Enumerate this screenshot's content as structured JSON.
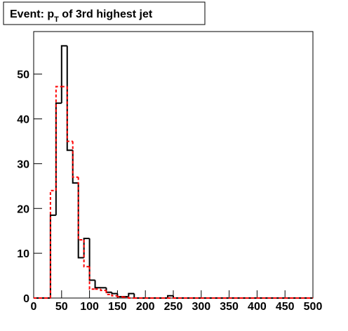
{
  "chart_data": {
    "type": "histogram",
    "title": [
      "Event: p",
      "T",
      " of 3rd highest jet"
    ],
    "bins": [
      0,
      10,
      20,
      30,
      40,
      50,
      60,
      70,
      80,
      90,
      100,
      110,
      120,
      130,
      140,
      150,
      160,
      170,
      180,
      190,
      200,
      210,
      220,
      230,
      240,
      250,
      260,
      270,
      280,
      290,
      300,
      310,
      320,
      330,
      340,
      350,
      360,
      370,
      380,
      390,
      400,
      410,
      420,
      430,
      440,
      450,
      460,
      470,
      480,
      490,
      500
    ],
    "series": [
      {
        "color": "#000000",
        "dash": false,
        "values": [
          0,
          0,
          0,
          18.5,
          43.5,
          56.3,
          33,
          25.7,
          9,
          13.3,
          4,
          2.3,
          2.3,
          1.3,
          1,
          0.3,
          0.3,
          1,
          0,
          0,
          0,
          0,
          0,
          0,
          0.5,
          0,
          0,
          0,
          0,
          0,
          0,
          0,
          0,
          0,
          0,
          0,
          0,
          0,
          0,
          0,
          0,
          0,
          0,
          0,
          0,
          0,
          0,
          0,
          0,
          0
        ]
      },
      {
        "color": "#ff0000",
        "dash": true,
        "values": [
          0,
          0,
          0,
          24,
          47.2,
          47.2,
          35,
          27,
          13,
          7,
          2,
          2,
          1.7,
          0.8,
          0.5,
          0.3,
          0.2,
          0,
          0,
          0,
          0,
          0,
          0,
          0,
          0,
          0,
          0,
          0,
          0,
          0,
          0,
          0,
          0,
          0,
          0,
          0,
          0,
          0,
          0,
          0,
          0,
          0,
          0,
          0,
          0,
          0,
          0,
          0,
          0,
          0
        ]
      }
    ],
    "xlim": [
      0,
      500
    ],
    "xticks": [
      0,
      50,
      100,
      150,
      200,
      250,
      300,
      350,
      400,
      450,
      500
    ],
    "ylim": [
      0,
      59.5
    ],
    "yticks": [
      0,
      10,
      20,
      30,
      40,
      50
    ]
  }
}
